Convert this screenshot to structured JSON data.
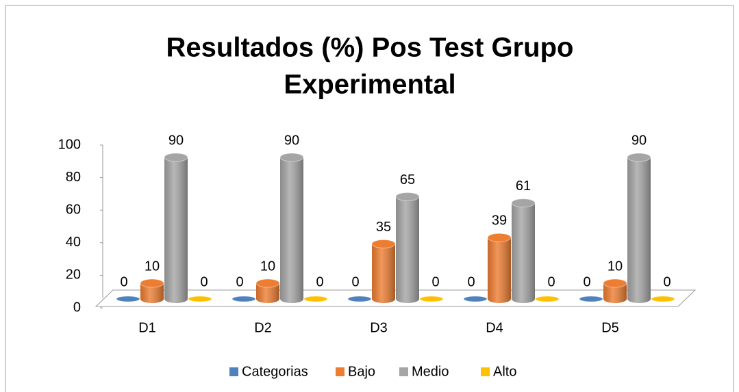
{
  "chart_data": {
    "type": "bar3d",
    "title": [
      "Resultados (%) Pos Test Grupo",
      "Experimental"
    ],
    "categories": [
      "D1",
      "D2",
      "D3",
      "D4",
      "D5"
    ],
    "series": [
      {
        "name": "Categorias",
        "color": "#4f81bd",
        "values": [
          0,
          0,
          0,
          0,
          0
        ]
      },
      {
        "name": "Bajo",
        "color": "#ed7d31",
        "values": [
          10,
          10,
          35,
          39,
          10
        ]
      },
      {
        "name": "Medio",
        "color": "#a5a5a5",
        "values": [
          90,
          90,
          65,
          61,
          90
        ]
      },
      {
        "name": "Alto",
        "color": "#ffc000",
        "values": [
          0,
          0,
          0,
          0,
          0
        ]
      }
    ],
    "ylim": [
      0,
      100
    ],
    "yticks": [
      0,
      20,
      40,
      60,
      80,
      100
    ],
    "legend": "bottom"
  }
}
